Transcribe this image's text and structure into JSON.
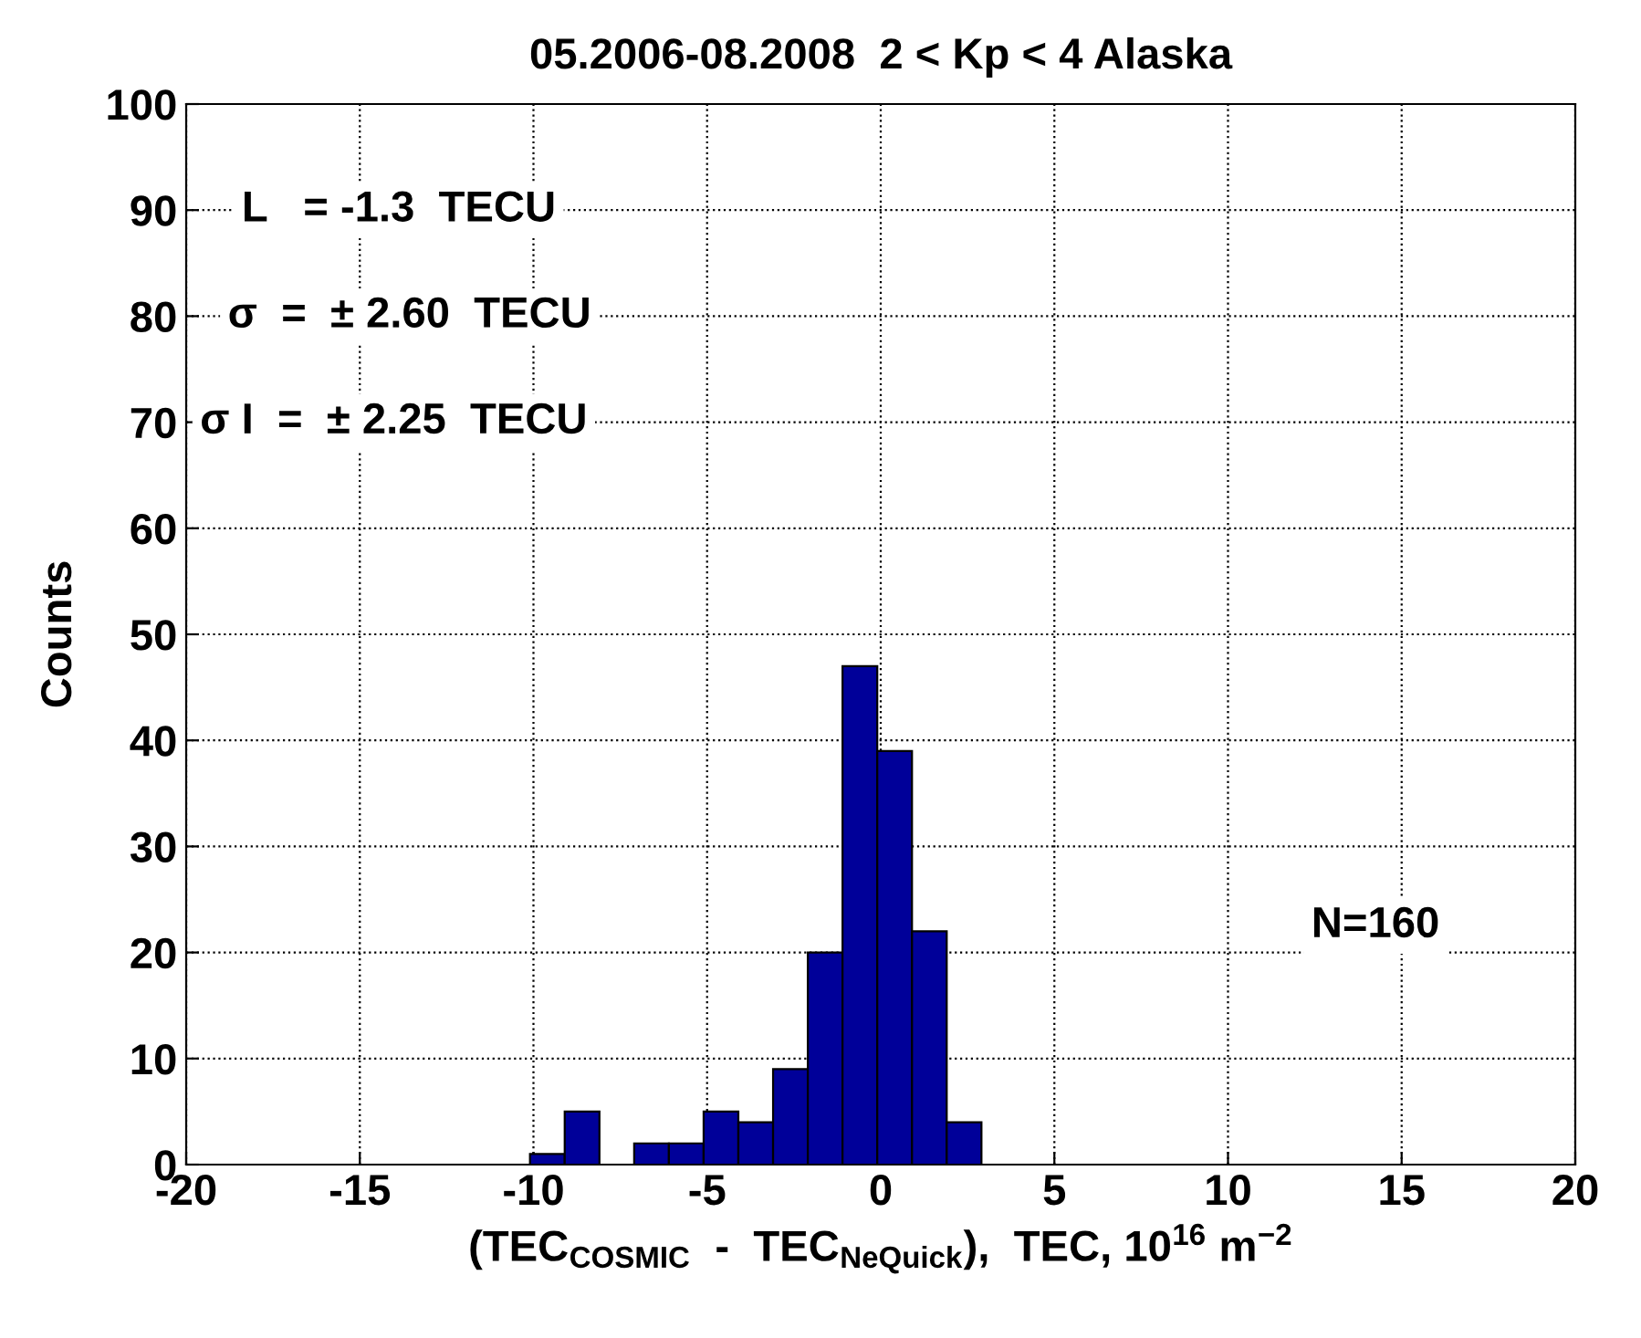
{
  "chart_data": {
    "type": "histogram",
    "title": "05.2006-08.2008  2 < Kp < 4 Alaska",
    "xlabel": "(TEC$_{COSMIC}$  -  TEC$_{NeQuick}$),  TEC, 10$^{16}$ m$^{−2}$",
    "ylabel": "Counts",
    "bins": [
      -10.1,
      -9.1,
      -8.1,
      -7.1,
      -6.1,
      -5.1,
      -4.1,
      -3.1,
      -2.1,
      -1.1,
      -0.1,
      0.9,
      1.9,
      2.9
    ],
    "values": [
      1,
      5,
      0,
      2,
      2,
      5,
      4,
      9,
      20,
      47,
      39,
      22,
      4
    ],
    "color": "#000099",
    "xlim": [
      -20,
      20
    ],
    "xticks": [
      -20,
      -15,
      -10,
      -5,
      0,
      5,
      10,
      15,
      20
    ],
    "ylim": [
      0,
      100
    ],
    "yticks": [
      0,
      10,
      20,
      30,
      40,
      50,
      60,
      70,
      80,
      90,
      100
    ],
    "grid": true,
    "annotations": [
      "L   = -1.3  TECU",
      "σ  =  ± 2.60  TECU",
      "σ I  =  ± 2.25  TECU",
      "N=160"
    ]
  }
}
